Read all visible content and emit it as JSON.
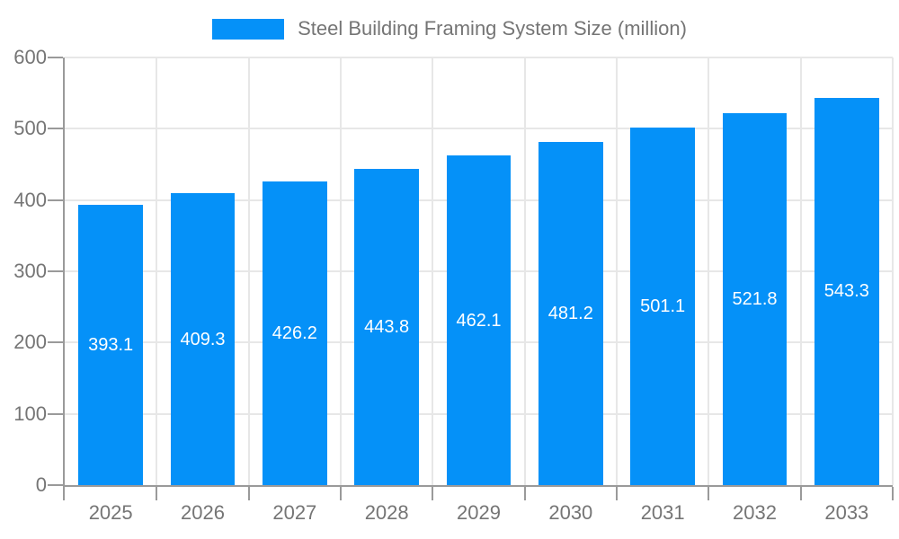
{
  "legend": {
    "title": "Steel Building Framing System Size (million)"
  },
  "chart_data": {
    "type": "bar",
    "title": "Steel Building Framing System Size (million)",
    "categories": [
      "2025",
      "2026",
      "2027",
      "2028",
      "2029",
      "2030",
      "2031",
      "2032",
      "2033"
    ],
    "values": [
      393.1,
      409.3,
      426.2,
      443.8,
      462.1,
      481.2,
      501.1,
      521.8,
      543.3
    ],
    "value_labels": [
      "393.1",
      "409.3",
      "426.2",
      "443.8",
      "462.1",
      "481.2",
      "501.1",
      "521.8",
      "543.3"
    ],
    "xlabel": "",
    "ylabel": "",
    "ylim": [
      0,
      600
    ],
    "yticks": [
      0,
      100,
      200,
      300,
      400,
      500,
      600
    ],
    "grid": true,
    "legend_position": "top-center",
    "colors": {
      "bar": "#0591f8",
      "axis_line": "#9a9a9a",
      "gridline": "#e7e7e7",
      "axis_text": "#757575",
      "value_text": "#ffffff",
      "background": "#ffffff"
    }
  }
}
